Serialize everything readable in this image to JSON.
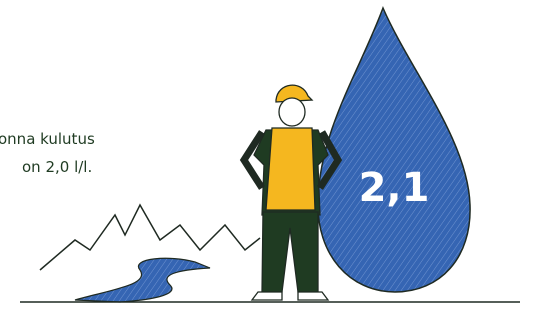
{
  "caption": {
    "lines": [
      "onna kulutus",
      "on 2,0 l/l."
    ]
  },
  "drop": {
    "label": "2,1"
  }
}
